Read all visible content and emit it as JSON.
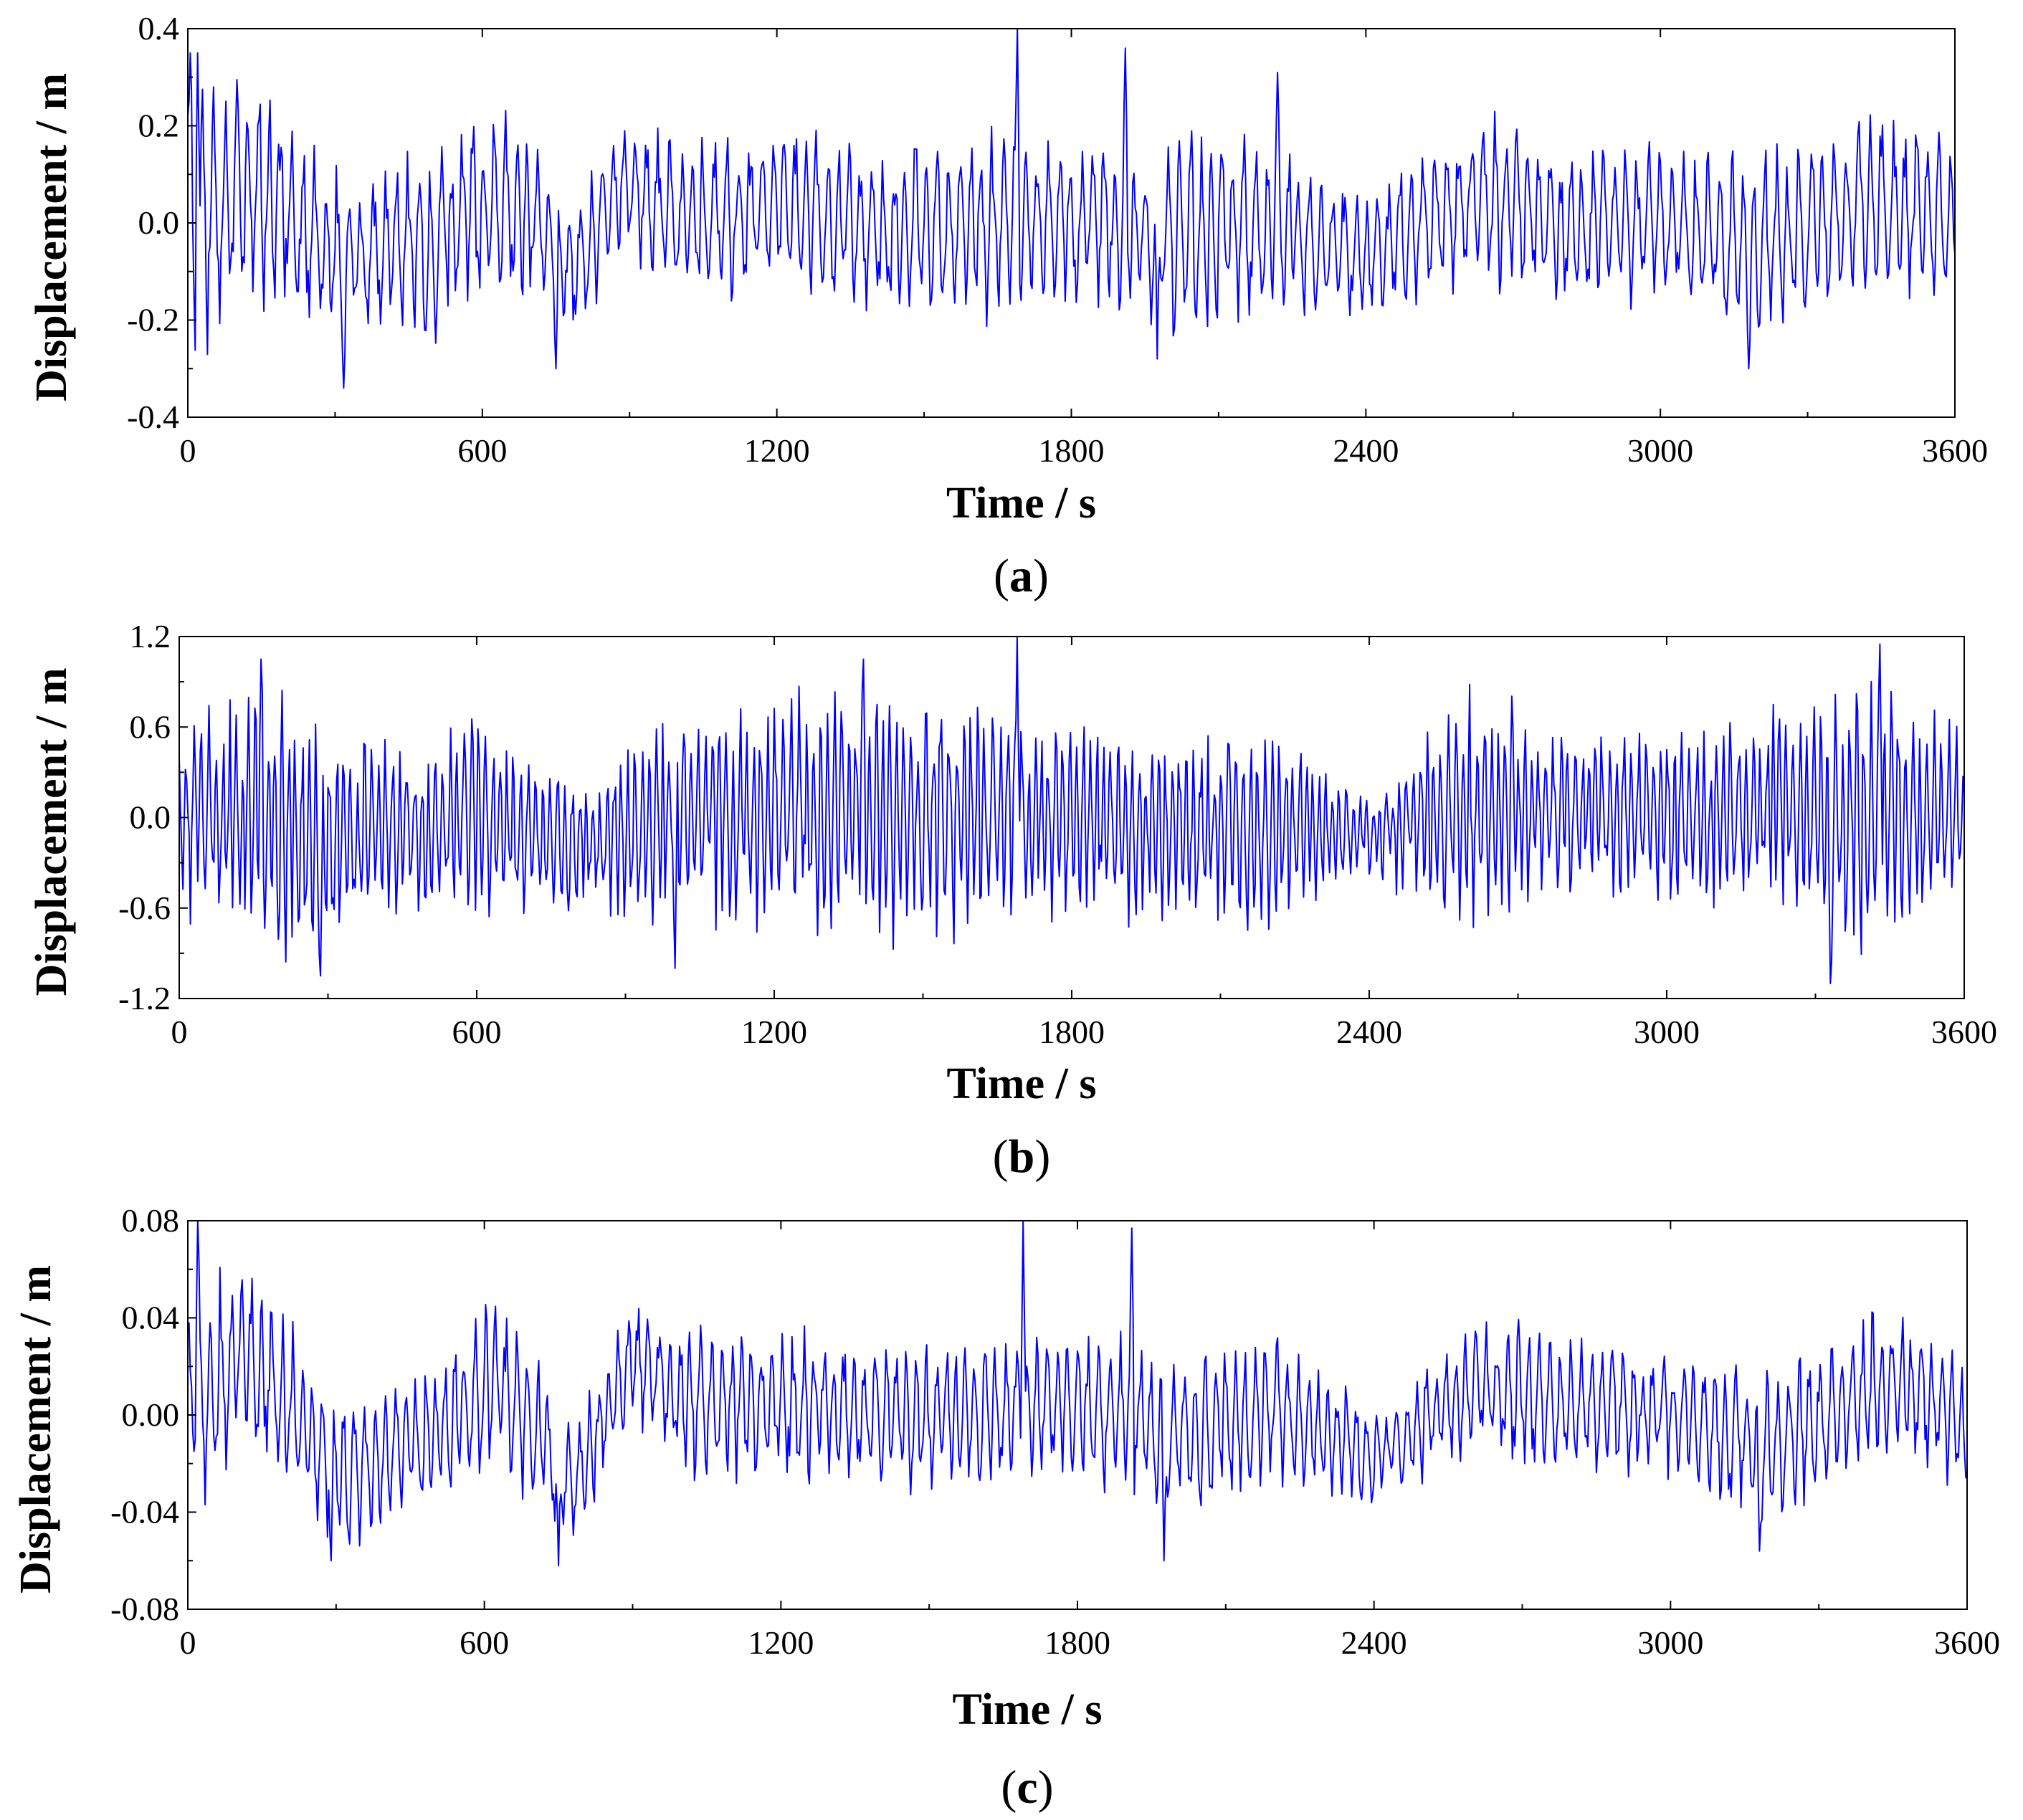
{
  "chart_data": [
    {
      "type": "line",
      "panel": "a",
      "caption": "(a)",
      "caption_letter": "a",
      "xlabel": "Time / s",
      "ylabel": "Displacement / m",
      "xlim": [
        0,
        3600
      ],
      "ylim": [
        -0.4,
        0.4
      ],
      "xticks": [
        0,
        600,
        1200,
        1800,
        2400,
        3000,
        3600
      ],
      "xtick_labels": [
        "0",
        "600",
        "1200",
        "1800",
        "2400",
        "3000",
        "3600"
      ],
      "yticks": [
        -0.4,
        -0.2,
        0.0,
        0.2,
        0.4
      ],
      "ytick_labels": [
        "-0.4",
        "-0.2",
        "0.0",
        "0.2",
        "0.4"
      ],
      "grid": false,
      "series": [
        {
          "name": "displacement-a",
          "color": "#0000ff",
          "sample_interval_s": 2.5,
          "peaks": [
            {
              "t": 5,
              "v": 0.35
            },
            {
              "t": 20,
              "v": 0.35
            },
            {
              "t": 318,
              "v": -0.34
            },
            {
              "t": 750,
              "v": -0.3
            },
            {
              "t": 1690,
              "v": 0.4
            },
            {
              "t": 1910,
              "v": 0.36
            },
            {
              "t": 1975,
              "v": -0.28
            },
            {
              "t": 2220,
              "v": 0.31
            },
            {
              "t": 3180,
              "v": -0.3
            }
          ],
          "envelope": [
            [
              0,
              0.28
            ],
            [
              200,
              0.2
            ],
            [
              400,
              0.17
            ],
            [
              600,
              0.2
            ],
            [
              800,
              0.15
            ],
            [
              1000,
              0.16
            ],
            [
              1200,
              0.19
            ],
            [
              1400,
              0.17
            ],
            [
              1600,
              0.19
            ],
            [
              1800,
              0.16
            ],
            [
              2000,
              0.2
            ],
            [
              2200,
              0.18
            ],
            [
              2400,
              0.12
            ],
            [
              2600,
              0.17
            ],
            [
              2800,
              0.16
            ],
            [
              3000,
              0.15
            ],
            [
              3200,
              0.18
            ],
            [
              3400,
              0.17
            ],
            [
              3600,
              0.17
            ]
          ],
          "trend": [
            [
              0,
              0.0
            ],
            [
              150,
              0.06
            ],
            [
              300,
              -0.08
            ],
            [
              500,
              -0.03
            ],
            [
              650,
              0.05
            ],
            [
              780,
              -0.1
            ],
            [
              900,
              0.08
            ],
            [
              1000,
              0.0
            ],
            [
              1200,
              0.03
            ],
            [
              1400,
              -0.02
            ],
            [
              1600,
              0.0
            ],
            [
              1800,
              0.01
            ],
            [
              2000,
              -0.03
            ],
            [
              2200,
              0.0
            ],
            [
              2400,
              -0.08
            ],
            [
              2600,
              0.05
            ],
            [
              2800,
              0.0
            ],
            [
              3000,
              0.0
            ],
            [
              3200,
              -0.06
            ],
            [
              3450,
              0.05
            ],
            [
              3600,
              -0.02
            ]
          ],
          "period_s": 24,
          "seed": 7
        }
      ]
    },
    {
      "type": "line",
      "panel": "b",
      "caption": "(b)",
      "caption_letter": "b",
      "xlabel": "Time / s",
      "ylabel": "Displacement / m",
      "xlim": [
        0,
        3600
      ],
      "ylim": [
        -1.2,
        1.2
      ],
      "xticks": [
        0,
        600,
        1200,
        1800,
        2400,
        3000,
        3600
      ],
      "xtick_labels": [
        "0",
        "600",
        "1200",
        "1800",
        "2400",
        "3000",
        "3600"
      ],
      "yticks": [
        -1.2,
        -0.6,
        0.0,
        0.6,
        1.2
      ],
      "ytick_labels": [
        "-1.2",
        "-0.6",
        "0.0",
        "0.6",
        "1.2"
      ],
      "grid": false,
      "series": [
        {
          "name": "displacement-b",
          "color": "#0000ff",
          "sample_interval_s": 2.5,
          "peaks": [
            {
              "t": 165,
              "v": 1.05
            },
            {
              "t": 285,
              "v": -1.05
            },
            {
              "t": 1000,
              "v": -1.0
            },
            {
              "t": 1380,
              "v": 1.05
            },
            {
              "t": 1690,
              "v": 1.2
            },
            {
              "t": 3330,
              "v": -1.1
            },
            {
              "t": 3430,
              "v": 1.15
            }
          ],
          "envelope": [
            [
              0,
              0.55
            ],
            [
              150,
              0.85
            ],
            [
              300,
              0.8
            ],
            [
              450,
              0.5
            ],
            [
              600,
              0.65
            ],
            [
              800,
              0.45
            ],
            [
              1000,
              0.75
            ],
            [
              1200,
              0.7
            ],
            [
              1400,
              0.8
            ],
            [
              1600,
              0.8
            ],
            [
              1800,
              0.6
            ],
            [
              2000,
              0.65
            ],
            [
              2200,
              0.6
            ],
            [
              2400,
              0.25
            ],
            [
              2600,
              0.75
            ],
            [
              2800,
              0.5
            ],
            [
              3000,
              0.6
            ],
            [
              3200,
              0.65
            ],
            [
              3400,
              0.9
            ],
            [
              3600,
              0.55
            ]
          ],
          "trend": [
            [
              0,
              0.0
            ],
            [
              300,
              -0.15
            ],
            [
              600,
              0.0
            ],
            [
              800,
              -0.2
            ],
            [
              1000,
              0.05
            ],
            [
              1600,
              0.0
            ],
            [
              2400,
              -0.1
            ],
            [
              2600,
              0.05
            ],
            [
              3200,
              0.0
            ],
            [
              3600,
              0.0
            ]
          ],
          "period_s": 15,
          "seed": 13
        }
      ]
    },
    {
      "type": "line",
      "panel": "c",
      "caption": "(c)",
      "caption_letter": "c",
      "xlabel": "Time / s",
      "ylabel": "Displacement / m",
      "xlim": [
        0,
        3600
      ],
      "ylim": [
        -0.08,
        0.08
      ],
      "xticks": [
        0,
        600,
        1200,
        1800,
        2400,
        3000,
        3600
      ],
      "xtick_labels": [
        "0",
        "600",
        "1200",
        "1800",
        "2400",
        "3000",
        "3600"
      ],
      "yticks": [
        -0.08,
        -0.04,
        0.0,
        0.04,
        0.08
      ],
      "ytick_labels": [
        "-0.08",
        "-0.04",
        "0.00",
        "0.04",
        "0.08"
      ],
      "grid": false,
      "series": [
        {
          "name": "displacement-c",
          "color": "#0000ff",
          "sample_interval_s": 2.5,
          "peaks": [
            {
              "t": 20,
              "v": 0.08
            },
            {
              "t": 290,
              "v": -0.06
            },
            {
              "t": 750,
              "v": -0.062
            },
            {
              "t": 1690,
              "v": 0.08
            },
            {
              "t": 1910,
              "v": 0.077
            },
            {
              "t": 1975,
              "v": -0.06
            },
            {
              "t": 3180,
              "v": -0.056
            }
          ],
          "envelope": [
            [
              0,
              0.045
            ],
            [
              200,
              0.035
            ],
            [
              400,
              0.028
            ],
            [
              600,
              0.035
            ],
            [
              800,
              0.025
            ],
            [
              1000,
              0.03
            ],
            [
              1200,
              0.03
            ],
            [
              1400,
              0.03
            ],
            [
              1600,
              0.03
            ],
            [
              1800,
              0.028
            ],
            [
              2000,
              0.032
            ],
            [
              2200,
              0.03
            ],
            [
              2400,
              0.018
            ],
            [
              2600,
              0.03
            ],
            [
              2800,
              0.028
            ],
            [
              3000,
              0.025
            ],
            [
              3200,
              0.03
            ],
            [
              3400,
              0.03
            ],
            [
              3600,
              0.028
            ]
          ],
          "trend": [
            [
              0,
              0.0
            ],
            [
              120,
              0.025
            ],
            [
              300,
              -0.025
            ],
            [
              500,
              -0.01
            ],
            [
              620,
              0.015
            ],
            [
              780,
              -0.03
            ],
            [
              900,
              0.025
            ],
            [
              1000,
              0.005
            ],
            [
              1200,
              0.005
            ],
            [
              1400,
              0.0
            ],
            [
              1600,
              0.0
            ],
            [
              1800,
              0.005
            ],
            [
              2000,
              -0.008
            ],
            [
              2200,
              0.0
            ],
            [
              2400,
              -0.018
            ],
            [
              2600,
              0.01
            ],
            [
              2800,
              0.005
            ],
            [
              3000,
              0.0
            ],
            [
              3200,
              -0.015
            ],
            [
              3450,
              0.015
            ],
            [
              3600,
              -0.005
            ]
          ],
          "period_s": 22,
          "seed": 29
        }
      ]
    }
  ]
}
